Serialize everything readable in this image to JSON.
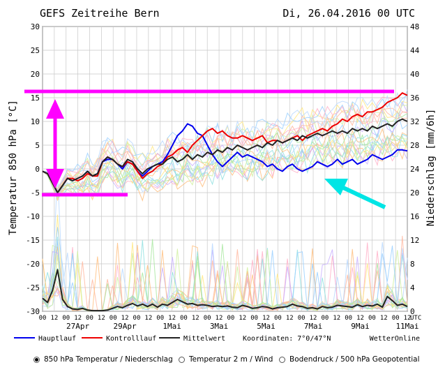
{
  "header": {
    "title": "GEFS Zeitreihe Bern",
    "date": "Di, 26.04.2016 00 UTC"
  },
  "chart_data": {
    "type": "line",
    "title": "GEFS Zeitreihe Bern",
    "ylabel": "Temperatur 850 hPa [°C]",
    "y2label": "Niederschlag [mm/6h]",
    "ylim": [
      -30,
      30
    ],
    "y2lim": [
      0,
      48
    ],
    "y_ticks": [
      30,
      25,
      20,
      15,
      10,
      5,
      0,
      -5,
      -10,
      -15,
      -20,
      -25,
      -30
    ],
    "y2_ticks": [
      48,
      44,
      40,
      36,
      32,
      28,
      24,
      20,
      16,
      12,
      8,
      4,
      0
    ],
    "x_hour_ticks": [
      "00",
      "12",
      "00",
      "12",
      "00",
      "12",
      "00",
      "12",
      "00",
      "12",
      "00",
      "12",
      "00",
      "12",
      "00",
      "12",
      "00",
      "12",
      "00",
      "12",
      "00",
      "12",
      "00",
      "12",
      "00",
      "12",
      "00",
      "12",
      "00",
      "12",
      "00",
      "12",
      "UTC"
    ],
    "x_day_labels": [
      "27Apr",
      "29Apr",
      "1Mai",
      "3Mai",
      "5Mai",
      "7Mai",
      "9Mai",
      "11Mai"
    ],
    "series": [
      {
        "name": "Hauptlauf",
        "color": "#0000ee",
        "values": [
          -0.5,
          -1,
          -3,
          -5,
          -3.5,
          -2,
          -2.5,
          -2,
          -1.5,
          -0.5,
          -1.5,
          -1,
          1.5,
          2,
          2,
          1,
          0,
          1.5,
          1,
          -0.5,
          -1.5,
          -0.5,
          0.5,
          1,
          1.5,
          3,
          5,
          7,
          8,
          9.5,
          9,
          7.5,
          7,
          5,
          3,
          1.5,
          0.5,
          1.5,
          2.5,
          3.5,
          2.5,
          3,
          2.5,
          2,
          1.5,
          0.5,
          1,
          0,
          -0.5,
          0.5,
          1,
          0,
          -0.5,
          0,
          0.5,
          1.5,
          1,
          0.5,
          1,
          2,
          1,
          1.5,
          2,
          1,
          1.5,
          2,
          3,
          2.5,
          2,
          2.5,
          3,
          4,
          4,
          3.8
        ]
      },
      {
        "name": "Kontrolllauf",
        "color": "#ee0000",
        "values": [
          -0.5,
          -1,
          -3,
          -5,
          -3.5,
          -2,
          -2,
          -2.5,
          -2,
          -1,
          -1.5,
          -1.5,
          1.5,
          2.5,
          2,
          1,
          0.5,
          1.5,
          1,
          -0.5,
          -2,
          -1,
          -0.5,
          0.5,
          1,
          2.5,
          3,
          4,
          4.5,
          3.5,
          5,
          6,
          7,
          8,
          8.5,
          7.5,
          8,
          7,
          6.5,
          6.5,
          7,
          6.5,
          6,
          6.5,
          7,
          5.5,
          6,
          6,
          5.5,
          6,
          6.5,
          7,
          6,
          7,
          7.5,
          8,
          8.5,
          8,
          9,
          9.5,
          10.5,
          10,
          11,
          11.5,
          11,
          12,
          12,
          12.5,
          13,
          14,
          14.5,
          15,
          16,
          15.5
        ]
      },
      {
        "name": "Mittelwert",
        "color": "#222222",
        "values": [
          -0.5,
          -1,
          -3,
          -5,
          -3.5,
          -2,
          -2.5,
          -2,
          -1.5,
          -0.5,
          -1.5,
          -1,
          1.5,
          2.5,
          2,
          1,
          0.5,
          2,
          1.5,
          0,
          -1,
          0,
          0.5,
          1,
          1,
          2,
          2.5,
          1.5,
          2,
          3,
          2,
          3,
          2.5,
          3.5,
          3,
          4,
          3.5,
          4.5,
          4,
          5,
          4.5,
          4,
          4.5,
          5,
          4.5,
          5.5,
          5,
          6,
          5.5,
          6,
          6.5,
          6,
          7,
          6.5,
          7,
          7.5,
          7,
          7.5,
          8,
          7.5,
          8,
          7.5,
          8.5,
          8,
          8.5,
          8,
          9,
          8.5,
          9,
          9.5,
          9,
          10,
          10.5,
          10
        ]
      },
      {
        "name": "Niederschlag Mittelwert",
        "axis": "y2",
        "color": "#222222",
        "values": [
          2.2,
          1.5,
          3.5,
          7,
          2,
          0.8,
          0.4,
          0.3,
          0.5,
          0.2,
          0.1,
          0.1,
          0.1,
          0.2,
          0.5,
          0.8,
          0.6,
          1,
          1.3,
          0.9,
          1.2,
          0.8,
          1.2,
          0.7,
          1.2,
          1,
          1.5,
          2,
          1.6,
          1.2,
          1.3,
          1,
          1.1,
          1,
          0.8,
          0.9,
          0.8,
          0.9,
          0.7,
          0.6,
          1,
          0.8,
          0.5,
          0.6,
          0.8,
          0.7,
          0.4,
          0.6,
          0.7,
          0.8,
          1.2,
          0.9,
          0.8,
          0.5,
          0.6,
          0.4,
          0.8,
          0.6,
          0.7,
          1,
          0.9,
          0.8,
          0.7,
          1.1,
          0.8,
          1,
          0.9,
          1.2,
          0.7,
          2.5,
          1.8,
          1,
          1.2,
          0.8
        ]
      }
    ],
    "legend": [
      "Hauptlauf",
      "Kontrolllauf",
      "Mittelwert"
    ],
    "koordinaten": "Koordinaten: 7°0/47°N",
    "brand": "WetterOnline",
    "annotations": {
      "highlight_color": "#ff00ff",
      "arrow_color": "#00e5e5"
    }
  },
  "options": [
    {
      "label": "850 hPa Temperatur / Niederschlag",
      "selected": true
    },
    {
      "label": "Temperatur 2 m / Wind",
      "selected": false
    },
    {
      "label": "Bodendruck / 500 hPa Geopotential",
      "selected": false
    }
  ]
}
